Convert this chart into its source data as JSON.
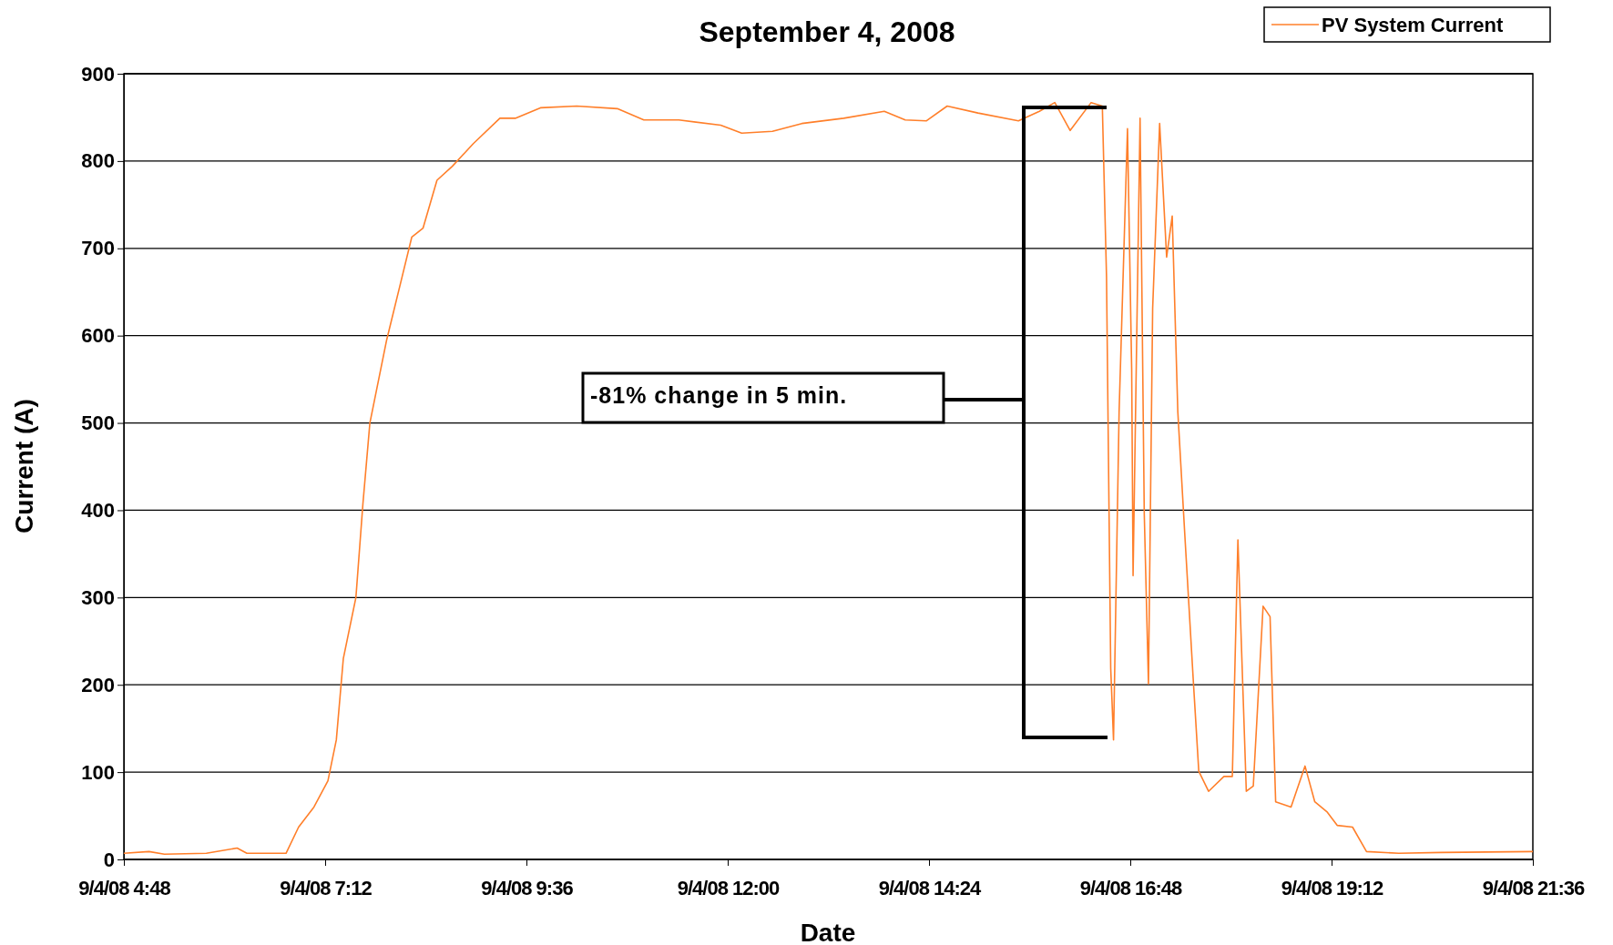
{
  "chart_data": {
    "type": "line",
    "title": "September 4, 2008",
    "xlabel": "Date",
    "ylabel": "Current (A)",
    "xlim": [
      "2008-09-04T04:48",
      "2008-09-04T21:36"
    ],
    "xticks": [
      {
        "value": "2008-09-04T04:48",
        "label": "9/4/08 4:48"
      },
      {
        "value": "2008-09-04T07:12",
        "label": "9/4/08 7:12"
      },
      {
        "value": "2008-09-04T09:36",
        "label": "9/4/08 9:36"
      },
      {
        "value": "2008-09-04T12:00",
        "label": "9/4/08 12:00"
      },
      {
        "value": "2008-09-04T14:24",
        "label": "9/4/08 14:24"
      },
      {
        "value": "2008-09-04T16:48",
        "label": "9/4/08 16:48"
      },
      {
        "value": "2008-09-04T19:12",
        "label": "9/4/08 19:12"
      },
      {
        "value": "2008-09-04T21:36",
        "label": "9/4/08 21:36"
      }
    ],
    "ylim": [
      0,
      900
    ],
    "yticks": [
      0,
      100,
      200,
      300,
      400,
      500,
      600,
      700,
      800,
      900
    ],
    "grid": "y",
    "legend": "top right",
    "marker": "none",
    "line_style": "solid",
    "annotations": [
      "-81% change in 5 min."
    ],
    "series": [
      {
        "name": "PV System Current",
        "color": "#ff7f2a",
        "x": [
          "2008-09-04T04:48",
          "2008-09-04T05:06",
          "2008-09-04T05:17",
          "2008-09-04T05:47",
          "2008-09-04T06:09",
          "2008-09-04T06:16",
          "2008-09-04T06:44",
          "2008-09-04T06:53",
          "2008-09-04T07:04",
          "2008-09-04T07:14",
          "2008-09-04T07:20",
          "2008-09-04T07:25",
          "2008-09-04T07:34",
          "2008-09-04T07:39",
          "2008-09-04T07:44",
          "2008-09-04T07:56",
          "2008-09-04T08:07",
          "2008-09-04T08:14",
          "2008-09-04T08:22",
          "2008-09-04T08:32",
          "2008-09-04T08:43",
          "2008-09-04T08:58",
          "2008-09-04T09:17",
          "2008-09-04T09:28",
          "2008-09-04T09:46",
          "2008-09-04T10:12",
          "2008-09-04T10:41",
          "2008-09-04T11:00",
          "2008-09-04T11:25",
          "2008-09-04T11:55",
          "2008-09-04T12:10",
          "2008-09-04T12:32",
          "2008-09-04T12:53",
          "2008-09-04T13:23",
          "2008-09-04T13:52",
          "2008-09-04T14:07",
          "2008-09-04T14:22",
          "2008-09-04T14:37",
          "2008-09-04T14:59",
          "2008-09-04T15:28",
          "2008-09-04T15:43",
          "2008-09-04T15:54",
          "2008-09-04T16:05",
          "2008-09-04T16:20",
          "2008-09-04T16:28",
          "2008-09-04T16:31",
          "2008-09-04T16:34",
          "2008-09-04T16:36",
          "2008-09-04T16:40",
          "2008-09-04T16:46",
          "2008-09-04T16:49",
          "2008-09-04T16:50",
          "2008-09-04T16:55",
          "2008-09-04T16:58",
          "2008-09-04T17:01",
          "2008-09-04T17:04",
          "2008-09-04T17:09",
          "2008-09-04T17:14",
          "2008-09-04T17:18",
          "2008-09-04T17:22",
          "2008-09-04T17:27",
          "2008-09-04T17:33",
          "2008-09-04T17:37",
          "2008-09-04T17:44",
          "2008-09-04T17:55",
          "2008-09-04T18:01",
          "2008-09-04T18:05",
          "2008-09-04T18:11",
          "2008-09-04T18:16",
          "2008-09-04T18:23",
          "2008-09-04T18:28",
          "2008-09-04T18:32",
          "2008-09-04T18:43",
          "2008-09-04T18:53",
          "2008-09-04T19:00",
          "2008-09-04T19:09",
          "2008-09-04T19:16",
          "2008-09-04T19:27",
          "2008-09-04T19:37",
          "2008-09-04T20:00",
          "2008-09-04T20:30",
          "2008-09-04T21:36"
        ],
        "values": [
          7,
          9,
          6,
          7,
          13,
          7,
          7,
          37,
          60,
          90,
          137,
          230,
          300,
          407,
          500,
          595,
          667,
          713,
          723,
          778,
          794,
          820,
          849,
          849,
          861,
          863,
          860,
          847,
          847,
          841,
          832,
          834,
          843,
          849,
          857,
          847,
          846,
          863,
          855,
          846,
          857,
          867,
          835,
          867,
          863,
          667,
          219,
          137,
          513,
          837,
          561,
          325,
          849,
          396,
          201,
          631,
          843,
          690,
          737,
          513,
          372,
          207,
          101,
          78,
          95,
          95,
          366,
          78,
          84,
          290,
          278,
          66,
          60,
          107,
          66,
          54,
          39,
          37,
          9,
          7,
          8,
          9
        ]
      }
    ]
  }
}
